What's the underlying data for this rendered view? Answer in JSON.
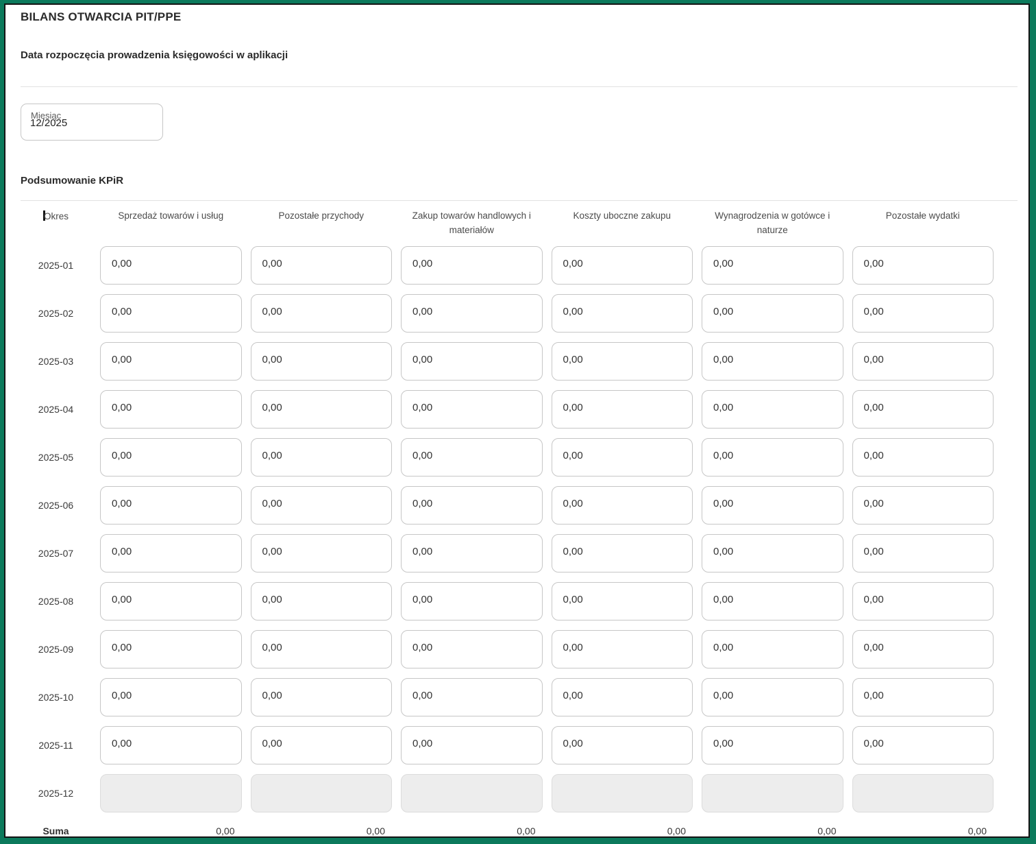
{
  "page": {
    "title": "BILANS OTWARCIA PIT/PPE",
    "date_section_label": "Data rozpoczęcia prowadzenia księgowości w aplikacji",
    "month_field": {
      "label": "Miesiąc",
      "value": "12/2025"
    },
    "summary_heading": "Podsumowanie KPiR"
  },
  "table": {
    "period_header": "Okres",
    "columns": [
      "Sprzedaż towarów i usług",
      "Pozostałe przychody",
      "Zakup towarów handlowych i materiałów",
      "Koszty uboczne zakupu",
      "Wynagrodzenia w gotówce i naturze",
      "Pozostałe wydatki"
    ],
    "rows": [
      {
        "period": "2025-01",
        "values": [
          "0,00",
          "0,00",
          "0,00",
          "0,00",
          "0,00",
          "0,00"
        ],
        "disabled": false
      },
      {
        "period": "2025-02",
        "values": [
          "0,00",
          "0,00",
          "0,00",
          "0,00",
          "0,00",
          "0,00"
        ],
        "disabled": false
      },
      {
        "period": "2025-03",
        "values": [
          "0,00",
          "0,00",
          "0,00",
          "0,00",
          "0,00",
          "0,00"
        ],
        "disabled": false
      },
      {
        "period": "2025-04",
        "values": [
          "0,00",
          "0,00",
          "0,00",
          "0,00",
          "0,00",
          "0,00"
        ],
        "disabled": false
      },
      {
        "period": "2025-05",
        "values": [
          "0,00",
          "0,00",
          "0,00",
          "0,00",
          "0,00",
          "0,00"
        ],
        "disabled": false
      },
      {
        "period": "2025-06",
        "values": [
          "0,00",
          "0,00",
          "0,00",
          "0,00",
          "0,00",
          "0,00"
        ],
        "disabled": false
      },
      {
        "period": "2025-07",
        "values": [
          "0,00",
          "0,00",
          "0,00",
          "0,00",
          "0,00",
          "0,00"
        ],
        "disabled": false
      },
      {
        "period": "2025-08",
        "values": [
          "0,00",
          "0,00",
          "0,00",
          "0,00",
          "0,00",
          "0,00"
        ],
        "disabled": false
      },
      {
        "period": "2025-09",
        "values": [
          "0,00",
          "0,00",
          "0,00",
          "0,00",
          "0,00",
          "0,00"
        ],
        "disabled": false
      },
      {
        "period": "2025-10",
        "values": [
          "0,00",
          "0,00",
          "0,00",
          "0,00",
          "0,00",
          "0,00"
        ],
        "disabled": false
      },
      {
        "period": "2025-11",
        "values": [
          "0,00",
          "0,00",
          "0,00",
          "0,00",
          "0,00",
          "0,00"
        ],
        "disabled": false
      },
      {
        "period": "2025-12",
        "values": [
          "",
          "",
          "",
          "",
          "",
          ""
        ],
        "disabled": true
      }
    ],
    "suma_label": "Suma",
    "suma_values": [
      "0,00",
      "0,00",
      "0,00",
      "0,00",
      "0,00",
      "0,00"
    ]
  },
  "colors": {
    "frame_green": "#0c7a5c",
    "frame_line": "#141414",
    "input_border": "#c6c6c6",
    "disabled_bg": "#ededed",
    "divider": "#e2e2e2"
  }
}
